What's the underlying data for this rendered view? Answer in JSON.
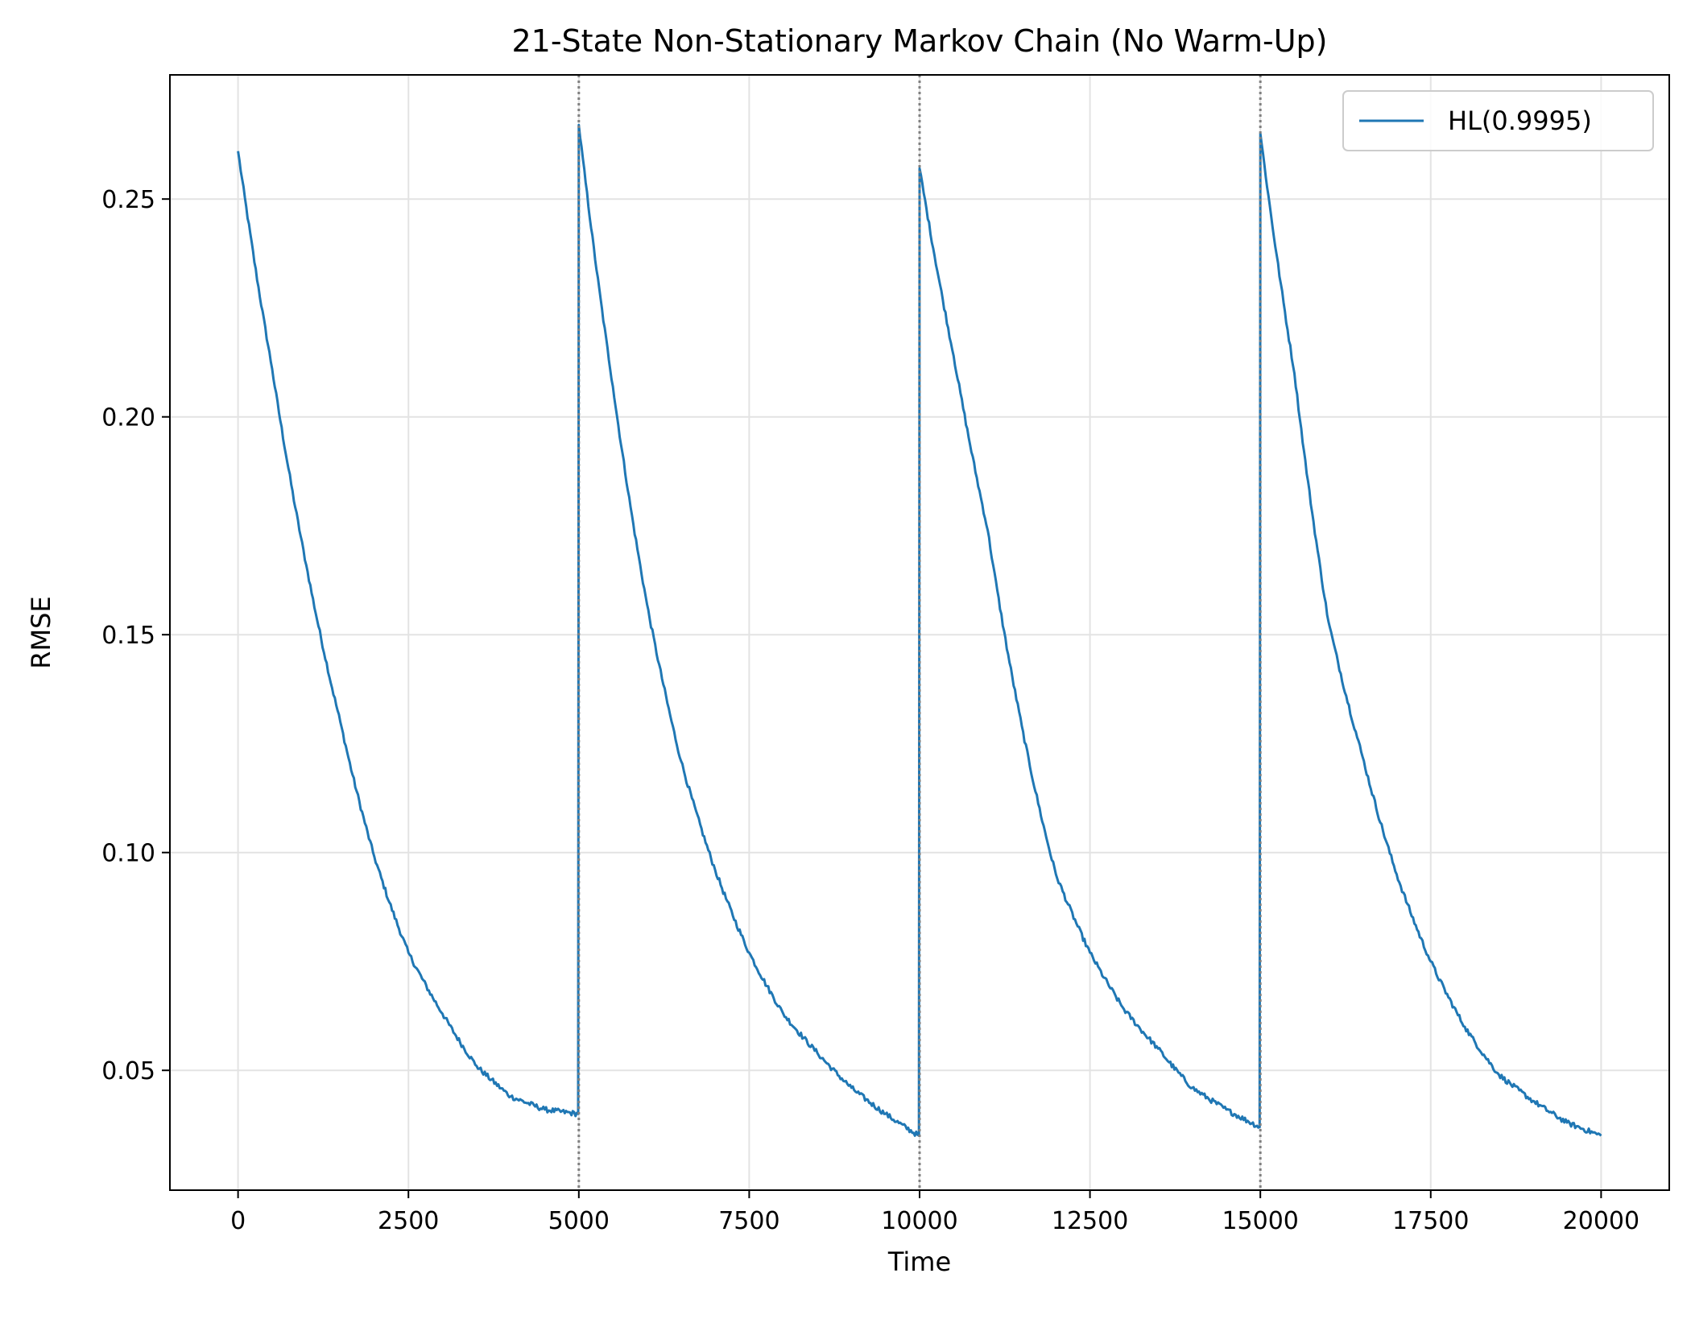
{
  "chart_data": {
    "type": "line",
    "title": "21-State Non-Stationary Markov Chain (No Warm-Up)",
    "xlabel": "Time",
    "ylabel": "RMSE",
    "xlim": [
      -1000,
      21000
    ],
    "ylim": [
      0.0225,
      0.2785
    ],
    "xticks": [
      0,
      2500,
      5000,
      7500,
      10000,
      12500,
      15000,
      17500,
      20000
    ],
    "xtick_labels": [
      "0",
      "2500",
      "5000",
      "7500",
      "10000",
      "12500",
      "15000",
      "17500",
      "20000"
    ],
    "yticks": [
      0.05,
      0.1,
      0.15,
      0.2,
      0.25
    ],
    "ytick_labels": [
      "0.05",
      "0.10",
      "0.15",
      "0.20",
      "0.25"
    ],
    "grid": true,
    "legend_position": "upper-right",
    "vlines": [
      5000,
      10000,
      15000
    ],
    "vline_color": "#808080",
    "series": [
      {
        "name": "HL(0.9995)",
        "color": "#1f77b4",
        "x": [
          0,
          500,
          1000,
          1500,
          2000,
          2500,
          3000,
          3500,
          4000,
          4500,
          4990,
          5000,
          5500,
          6000,
          6500,
          7000,
          7500,
          8000,
          8500,
          9000,
          9500,
          9990,
          10000,
          10500,
          11000,
          11500,
          12000,
          12500,
          13000,
          13500,
          14000,
          14500,
          14990,
          15000,
          15500,
          16000,
          16500,
          17000,
          17500,
          18000,
          18500,
          19000,
          19500,
          20000
        ],
        "y": [
          0.261,
          0.211,
          0.166,
          0.13,
          0.099,
          0.077,
          0.063,
          0.051,
          0.044,
          0.041,
          0.04,
          0.267,
          0.207,
          0.157,
          0.121,
          0.096,
          0.077,
          0.063,
          0.054,
          0.046,
          0.04,
          0.035,
          0.257,
          0.214,
          0.174,
          0.129,
          0.095,
          0.077,
          0.064,
          0.055,
          0.046,
          0.041,
          0.037,
          0.265,
          0.21,
          0.153,
          0.122,
          0.095,
          0.075,
          0.06,
          0.049,
          0.043,
          0.038,
          0.035
        ]
      }
    ]
  }
}
